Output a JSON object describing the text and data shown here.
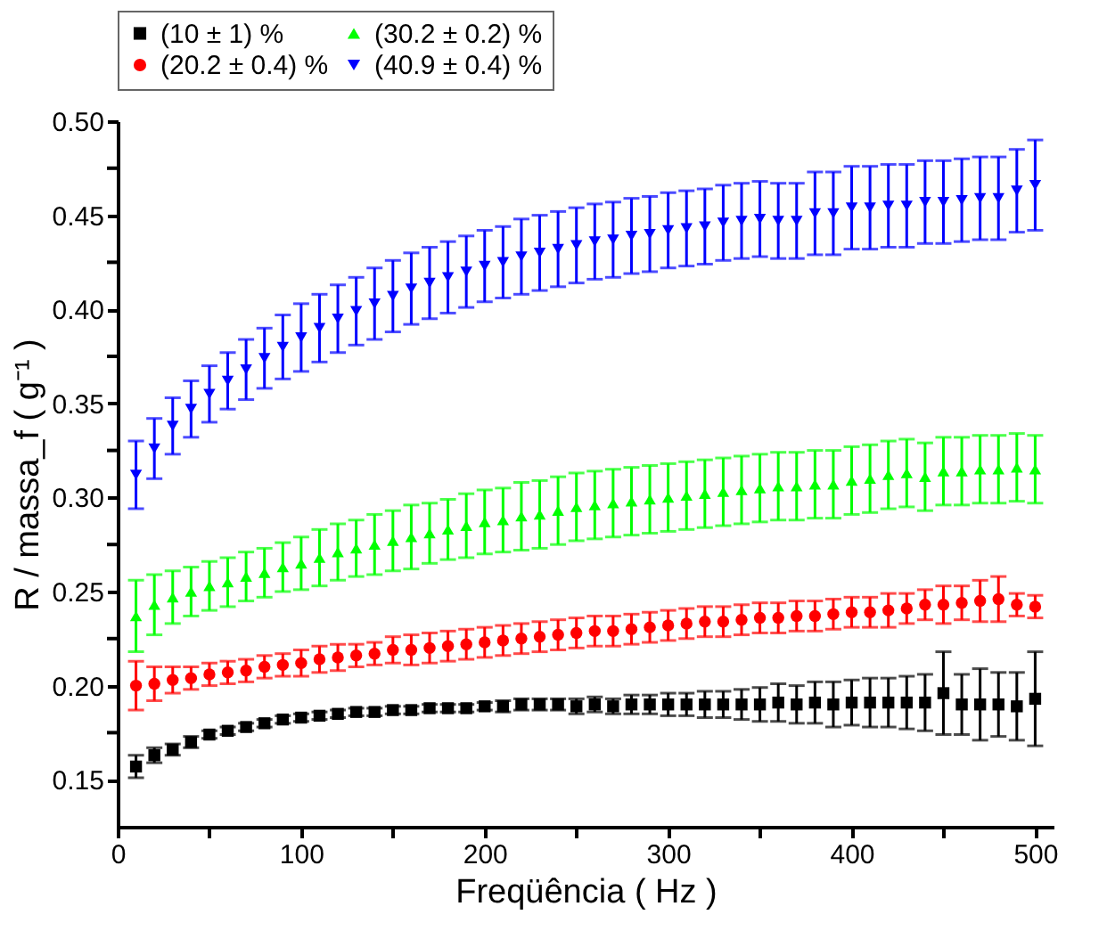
{
  "chart_data": {
    "type": "scatter",
    "xlabel": "Freqüência ( Hz )",
    "ylabel": "R / massa_f ( g⁻¹ )",
    "x": [
      10,
      20,
      30,
      40,
      50,
      60,
      70,
      80,
      90,
      100,
      110,
      120,
      130,
      140,
      150,
      160,
      170,
      180,
      190,
      200,
      210,
      220,
      230,
      240,
      250,
      260,
      270,
      280,
      290,
      300,
      310,
      320,
      330,
      340,
      350,
      360,
      370,
      380,
      390,
      400,
      410,
      420,
      430,
      440,
      450,
      460,
      470,
      480,
      490,
      500
    ],
    "series": [
      {
        "name": "(10 ± 1) %",
        "color": "#000000",
        "marker": "square",
        "values": [
          0.157,
          0.163,
          0.166,
          0.17,
          0.174,
          0.176,
          0.178,
          0.18,
          0.182,
          0.183,
          0.184,
          0.185,
          0.186,
          0.186,
          0.187,
          0.187,
          0.188,
          0.188,
          0.188,
          0.189,
          0.189,
          0.19,
          0.19,
          0.19,
          0.189,
          0.19,
          0.189,
          0.19,
          0.19,
          0.19,
          0.19,
          0.19,
          0.19,
          0.19,
          0.19,
          0.191,
          0.19,
          0.191,
          0.19,
          0.191,
          0.191,
          0.191,
          0.191,
          0.191,
          0.196,
          0.19,
          0.19,
          0.19,
          0.189,
          0.193
        ],
        "errors": [
          0.006,
          0.004,
          0.003,
          0.003,
          0.002,
          0.002,
          0.002,
          0.002,
          0.002,
          0.002,
          0.002,
          0.002,
          0.002,
          0.002,
          0.002,
          0.002,
          0.002,
          0.002,
          0.002,
          0.002,
          0.003,
          0.003,
          0.003,
          0.003,
          0.004,
          0.004,
          0.004,
          0.005,
          0.005,
          0.006,
          0.006,
          0.007,
          0.007,
          0.008,
          0.009,
          0.01,
          0.01,
          0.011,
          0.012,
          0.012,
          0.013,
          0.013,
          0.014,
          0.015,
          0.022,
          0.016,
          0.019,
          0.017,
          0.018,
          0.025
        ]
      },
      {
        "name": "(20.2 ± 0.4) %",
        "color": "#ff0000",
        "marker": "circle",
        "values": [
          0.2,
          0.201,
          0.203,
          0.204,
          0.206,
          0.207,
          0.208,
          0.21,
          0.211,
          0.212,
          0.214,
          0.215,
          0.216,
          0.217,
          0.219,
          0.219,
          0.22,
          0.221,
          0.222,
          0.223,
          0.224,
          0.225,
          0.226,
          0.227,
          0.228,
          0.229,
          0.229,
          0.23,
          0.231,
          0.232,
          0.233,
          0.234,
          0.234,
          0.235,
          0.236,
          0.236,
          0.237,
          0.237,
          0.238,
          0.239,
          0.239,
          0.24,
          0.241,
          0.243,
          0.243,
          0.244,
          0.245,
          0.246,
          0.243,
          0.242
        ],
        "errors": [
          0.013,
          0.009,
          0.007,
          0.006,
          0.006,
          0.006,
          0.006,
          0.006,
          0.006,
          0.007,
          0.007,
          0.007,
          0.006,
          0.006,
          0.007,
          0.008,
          0.008,
          0.008,
          0.008,
          0.008,
          0.008,
          0.008,
          0.008,
          0.008,
          0.008,
          0.008,
          0.008,
          0.008,
          0.008,
          0.008,
          0.008,
          0.008,
          0.008,
          0.008,
          0.008,
          0.008,
          0.008,
          0.008,
          0.008,
          0.008,
          0.008,
          0.009,
          0.008,
          0.008,
          0.01,
          0.009,
          0.011,
          0.012,
          0.006,
          0.006
        ]
      },
      {
        "name": "(30.2 ± 0.2) %",
        "color": "#00ff00",
        "marker": "triangle-up",
        "values": [
          0.237,
          0.243,
          0.247,
          0.25,
          0.253,
          0.255,
          0.258,
          0.26,
          0.263,
          0.265,
          0.268,
          0.271,
          0.273,
          0.275,
          0.277,
          0.279,
          0.281,
          0.283,
          0.285,
          0.287,
          0.288,
          0.29,
          0.291,
          0.293,
          0.295,
          0.296,
          0.297,
          0.298,
          0.299,
          0.3,
          0.301,
          0.302,
          0.303,
          0.304,
          0.305,
          0.306,
          0.306,
          0.307,
          0.307,
          0.309,
          0.31,
          0.312,
          0.313,
          0.311,
          0.314,
          0.314,
          0.315,
          0.315,
          0.316,
          0.315
        ],
        "errors": [
          0.019,
          0.016,
          0.014,
          0.013,
          0.013,
          0.013,
          0.013,
          0.013,
          0.013,
          0.014,
          0.015,
          0.015,
          0.015,
          0.016,
          0.016,
          0.017,
          0.016,
          0.016,
          0.017,
          0.017,
          0.017,
          0.018,
          0.018,
          0.018,
          0.018,
          0.018,
          0.018,
          0.018,
          0.018,
          0.018,
          0.018,
          0.018,
          0.018,
          0.018,
          0.018,
          0.018,
          0.018,
          0.018,
          0.018,
          0.018,
          0.018,
          0.018,
          0.018,
          0.018,
          0.018,
          0.018,
          0.018,
          0.018,
          0.018,
          0.018
        ]
      },
      {
        "name": "(40.9 ± 0.4) %",
        "color": "#0000ff",
        "marker": "triangle-down",
        "values": [
          0.312,
          0.326,
          0.338,
          0.347,
          0.355,
          0.362,
          0.368,
          0.374,
          0.38,
          0.385,
          0.39,
          0.395,
          0.399,
          0.403,
          0.407,
          0.411,
          0.414,
          0.417,
          0.42,
          0.423,
          0.425,
          0.428,
          0.43,
          0.432,
          0.434,
          0.436,
          0.437,
          0.439,
          0.44,
          0.442,
          0.443,
          0.444,
          0.446,
          0.447,
          0.448,
          0.447,
          0.447,
          0.451,
          0.451,
          0.454,
          0.454,
          0.455,
          0.455,
          0.457,
          0.457,
          0.458,
          0.459,
          0.459,
          0.463,
          0.466
        ],
        "errors": [
          0.018,
          0.016,
          0.015,
          0.015,
          0.015,
          0.015,
          0.016,
          0.016,
          0.017,
          0.018,
          0.018,
          0.018,
          0.018,
          0.019,
          0.019,
          0.019,
          0.019,
          0.019,
          0.019,
          0.019,
          0.019,
          0.02,
          0.02,
          0.02,
          0.02,
          0.02,
          0.02,
          0.02,
          0.02,
          0.02,
          0.02,
          0.02,
          0.02,
          0.02,
          0.02,
          0.02,
          0.02,
          0.022,
          0.022,
          0.022,
          0.022,
          0.022,
          0.022,
          0.022,
          0.022,
          0.022,
          0.022,
          0.022,
          0.022,
          0.024
        ]
      }
    ],
    "xlim": [
      0,
      510
    ],
    "xticks": [
      0,
      {
        "value": 50,
        "label": null
      },
      100,
      {
        "value": 150,
        "label": null
      },
      200,
      {
        "value": 250,
        "label": null
      },
      300,
      {
        "value": 350,
        "label": null
      },
      400,
      {
        "value": 450,
        "label": null
      },
      500
    ],
    "ylim": [
      0.125,
      0.5
    ],
    "yticks": [
      {
        "value": 0.15,
        "label": "0.15"
      },
      {
        "value": 0.175,
        "label": null
      },
      {
        "value": 0.2,
        "label": "0.20"
      },
      {
        "value": 0.225,
        "label": null
      },
      {
        "value": 0.25,
        "label": "0.25"
      },
      {
        "value": 0.275,
        "label": null
      },
      {
        "value": 0.3,
        "label": "0.30"
      },
      {
        "value": 0.325,
        "label": null
      },
      {
        "value": 0.35,
        "label": "0.35"
      },
      {
        "value": 0.375,
        "label": null
      },
      {
        "value": 0.4,
        "label": "0.40"
      },
      {
        "value": 0.425,
        "label": null
      },
      {
        "value": 0.45,
        "label": "0.45"
      },
      {
        "value": 0.475,
        "label": null
      },
      {
        "value": 0.5,
        "label": "0.50"
      }
    ],
    "grid": false,
    "legend": "top"
  }
}
